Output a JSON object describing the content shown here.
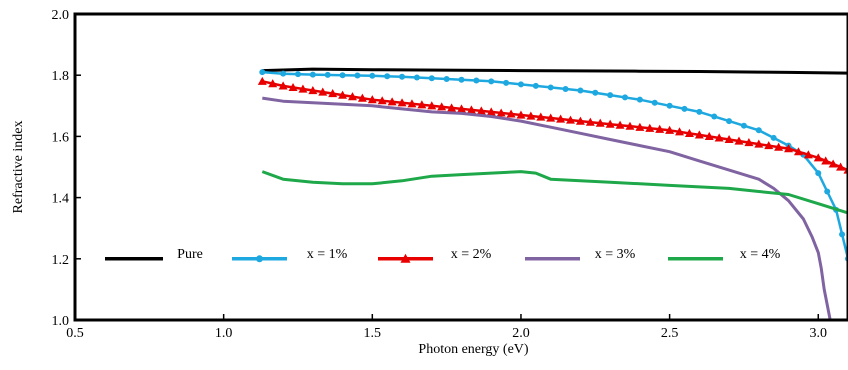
{
  "chart_data": {
    "type": "line",
    "title": "",
    "xlabel": "Photon energy (eV)",
    "ylabel": "Refractive index",
    "xlim": [
      0.5,
      3.1
    ],
    "ylim": [
      1.0,
      2.0
    ],
    "xticks": [
      0.5,
      1.0,
      1.5,
      2.0,
      2.5,
      3.0
    ],
    "yticks": [
      1.0,
      1.2,
      1.4,
      1.6,
      1.8,
      2.0
    ],
    "xtick_labels": [
      "0.5",
      "1.0",
      "1.5",
      "2.0",
      "2.5",
      "3.0"
    ],
    "ytick_labels": [
      "1.0",
      "1.2",
      "1.4",
      "1.6",
      "1.8",
      "2.0"
    ],
    "legend_position": "bottom-inside",
    "series": [
      {
        "name": "Pure",
        "color": "#000000",
        "marker": "none",
        "x": [
          1.13,
          1.3,
          1.5,
          1.8,
          2.0,
          2.2,
          2.4,
          2.6,
          2.8,
          2.9,
          3.0,
          3.1
        ],
        "y": [
          1.815,
          1.82,
          1.818,
          1.816,
          1.815,
          1.814,
          1.813,
          1.812,
          1.81,
          1.809,
          1.808,
          1.807
        ]
      },
      {
        "name": "x = 1%",
        "color": "#1ea8e0",
        "marker": "circle",
        "x": [
          1.13,
          1.2,
          1.3,
          1.4,
          1.5,
          1.6,
          1.7,
          1.8,
          1.9,
          2.0,
          2.1,
          2.2,
          2.3,
          2.4,
          2.5,
          2.6,
          2.7,
          2.8,
          2.85,
          2.9,
          2.95,
          3.0,
          3.03,
          3.06,
          3.08,
          3.1
        ],
        "y": [
          1.81,
          1.805,
          1.802,
          1.8,
          1.798,
          1.795,
          1.79,
          1.785,
          1.78,
          1.77,
          1.76,
          1.75,
          1.735,
          1.72,
          1.7,
          1.68,
          1.65,
          1.62,
          1.595,
          1.57,
          1.54,
          1.48,
          1.42,
          1.36,
          1.28,
          1.2
        ]
      },
      {
        "name": "x = 2%",
        "color": "#e80000",
        "marker": "triangle",
        "x": [
          1.13,
          1.2,
          1.3,
          1.4,
          1.5,
          1.6,
          1.7,
          1.8,
          1.9,
          2.0,
          2.1,
          2.2,
          2.3,
          2.4,
          2.5,
          2.6,
          2.7,
          2.8,
          2.9,
          3.0,
          3.05,
          3.1
        ],
        "y": [
          1.78,
          1.765,
          1.75,
          1.735,
          1.72,
          1.71,
          1.7,
          1.69,
          1.68,
          1.67,
          1.66,
          1.65,
          1.64,
          1.63,
          1.62,
          1.605,
          1.59,
          1.575,
          1.56,
          1.53,
          1.51,
          1.49
        ]
      },
      {
        "name": "x = 3%",
        "color": "#8064a2",
        "marker": "none",
        "x": [
          1.13,
          1.2,
          1.3,
          1.4,
          1.5,
          1.6,
          1.7,
          1.8,
          1.9,
          2.0,
          2.1,
          2.2,
          2.3,
          2.4,
          2.5,
          2.6,
          2.7,
          2.8,
          2.85,
          2.9,
          2.95,
          2.98,
          3.0,
          3.01,
          3.02,
          3.03,
          3.04
        ],
        "y": [
          1.725,
          1.715,
          1.71,
          1.705,
          1.7,
          1.69,
          1.68,
          1.675,
          1.665,
          1.65,
          1.63,
          1.61,
          1.59,
          1.57,
          1.55,
          1.52,
          1.49,
          1.46,
          1.43,
          1.39,
          1.33,
          1.27,
          1.22,
          1.17,
          1.1,
          1.05,
          1.0
        ]
      },
      {
        "name": "x = 4%",
        "color": "#1ea84a",
        "marker": "none",
        "x": [
          1.13,
          1.2,
          1.3,
          1.4,
          1.5,
          1.6,
          1.7,
          1.8,
          1.9,
          2.0,
          2.05,
          2.1,
          2.2,
          2.3,
          2.4,
          2.5,
          2.6,
          2.7,
          2.8,
          2.9,
          3.0,
          3.1
        ],
        "y": [
          1.485,
          1.46,
          1.45,
          1.445,
          1.445,
          1.455,
          1.47,
          1.475,
          1.48,
          1.485,
          1.48,
          1.46,
          1.455,
          1.45,
          1.445,
          1.44,
          1.435,
          1.43,
          1.42,
          1.41,
          1.38,
          1.35
        ]
      }
    ]
  }
}
